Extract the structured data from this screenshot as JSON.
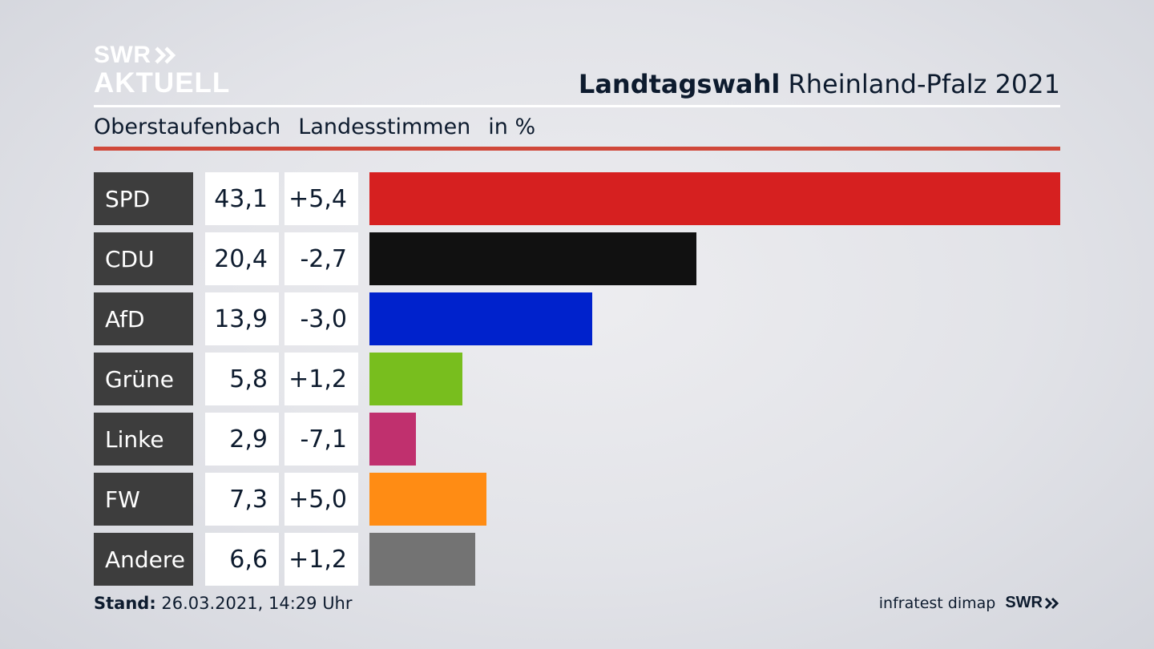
{
  "logo": {
    "line1": "SWR",
    "line2": "AKTUELL"
  },
  "title": {
    "bold": "Landtagswahl",
    "rest": "Rheinland-Pfalz 2021"
  },
  "subtitle": {
    "place": "Oberstaufenbach",
    "kind": "Landesstimmen",
    "unit": "in %"
  },
  "footer": {
    "stand_label": "Stand:",
    "stand_value": "26.03.2021, 14:29 Uhr",
    "source": "infratest dimap",
    "brand": "SWR"
  },
  "chart_data": {
    "type": "bar",
    "orientation": "horizontal",
    "xlim": [
      0,
      43.1
    ],
    "categories": [
      "SPD",
      "CDU",
      "AfD",
      "Grüne",
      "Linke",
      "FW",
      "Andere"
    ],
    "values": [
      43.1,
      20.4,
      13.9,
      5.8,
      2.9,
      7.3,
      6.6
    ],
    "values_label": [
      "43,1",
      "20,4",
      "13,9",
      "5,8",
      "2,9",
      "7,3",
      "6,6"
    ],
    "changes_label": [
      "+5,4",
      "-2,7",
      "-3,0",
      "+1,2",
      "-7,1",
      "+5,0",
      "+1,2"
    ],
    "colors": [
      "#d62020",
      "#111111",
      "#0022cc",
      "#78be1e",
      "#c0306e",
      "#ff8c14",
      "#737373"
    ]
  }
}
